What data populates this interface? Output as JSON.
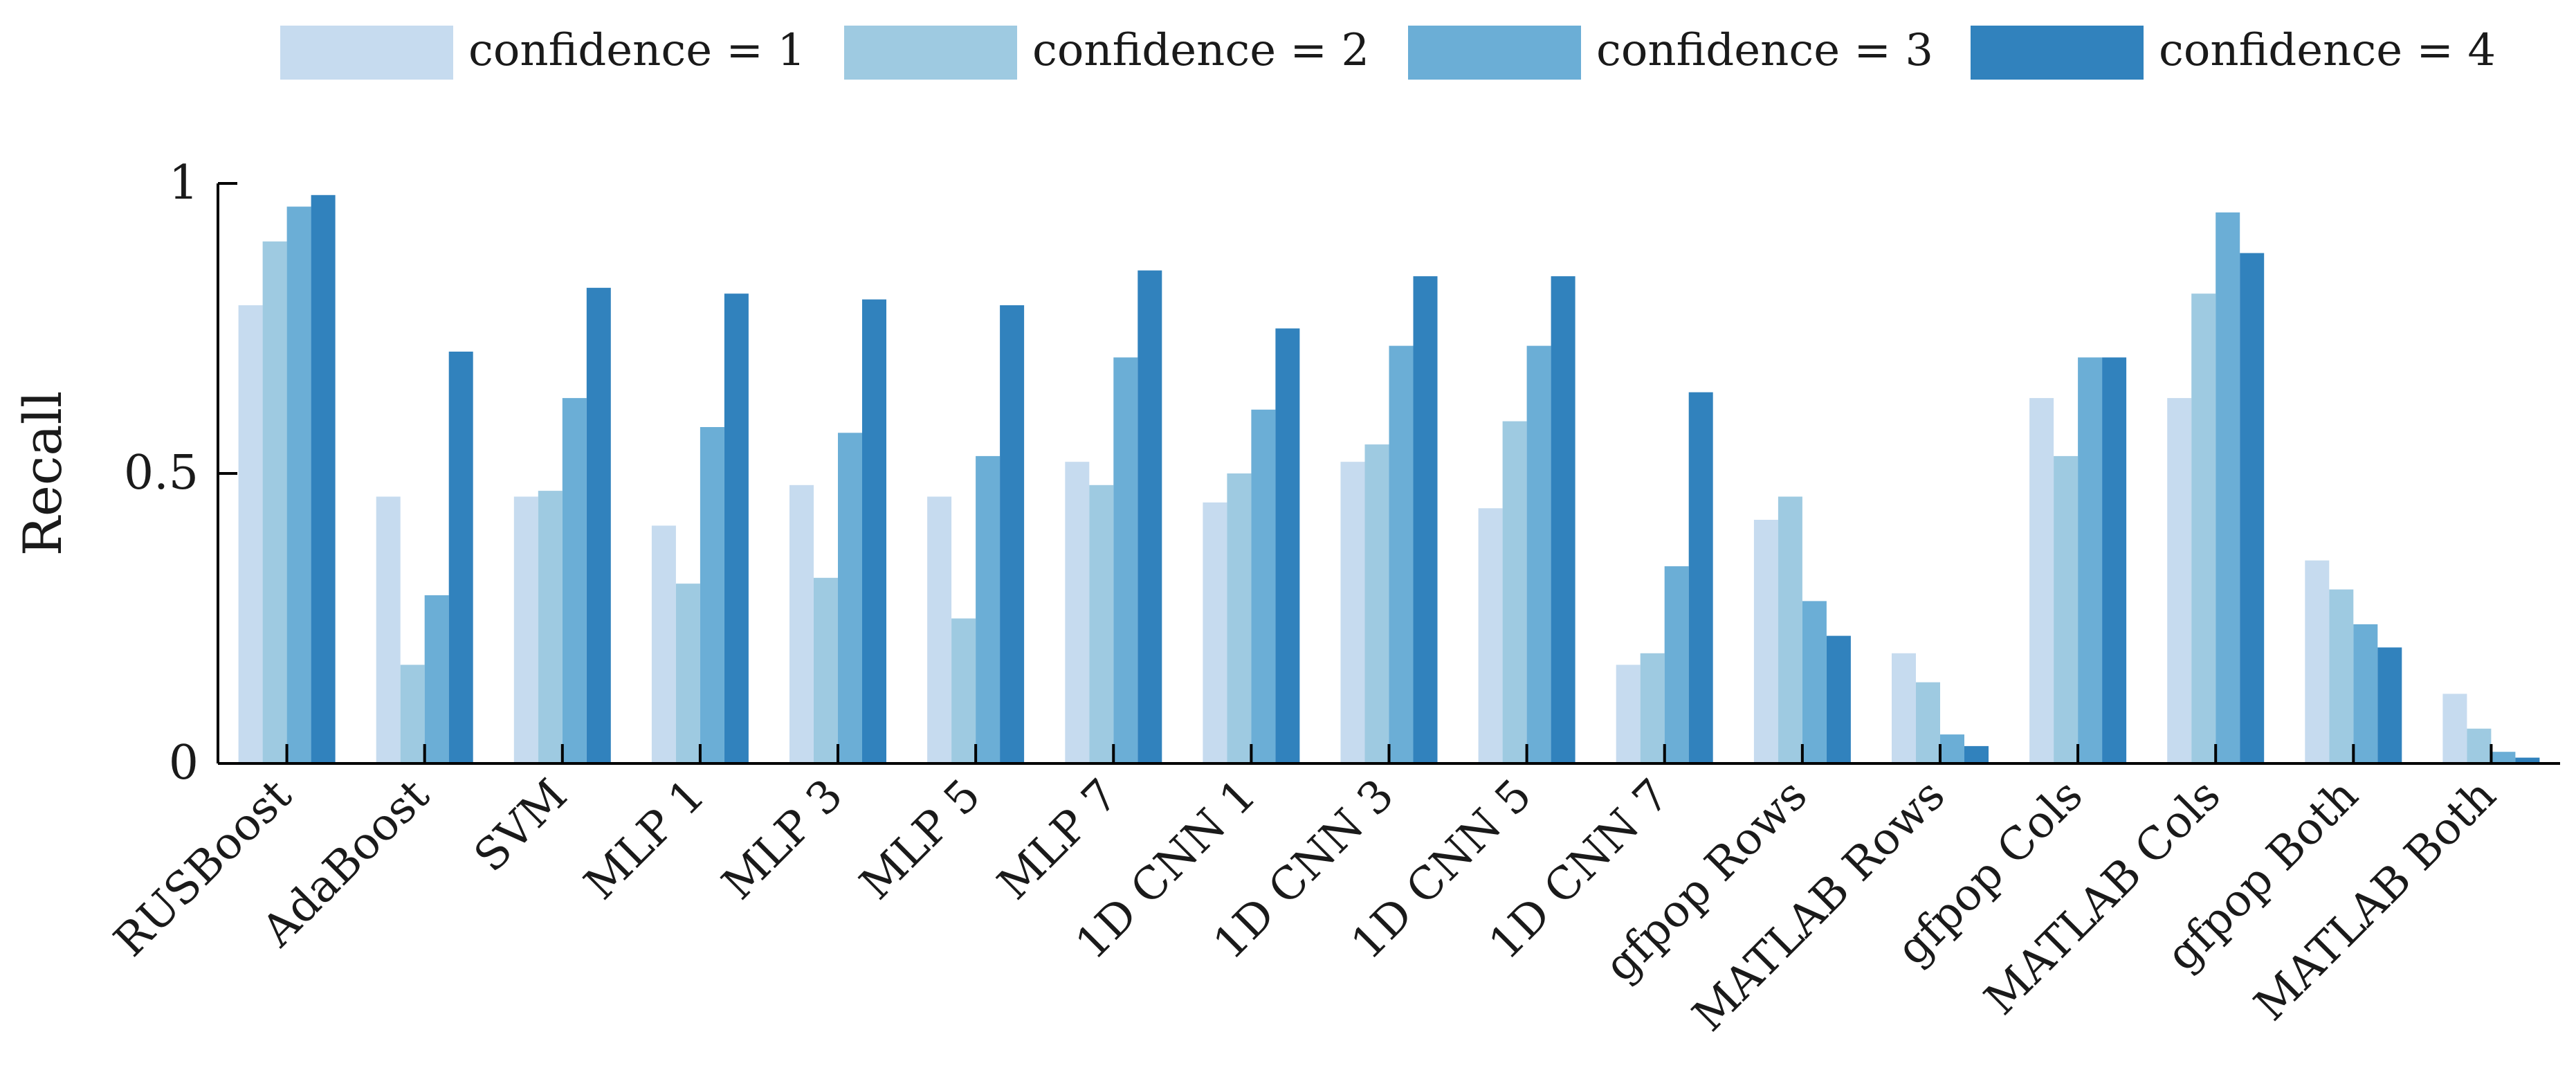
{
  "chart_data": {
    "type": "bar",
    "title": "",
    "xlabel": "",
    "ylabel": "Recall",
    "ylim": [
      0,
      1
    ],
    "yticks": [
      0,
      0.5,
      1
    ],
    "ytick_labels": [
      "0",
      "0.5",
      "1"
    ],
    "grid": false,
    "legend_position": "top",
    "categories": [
      "RUSBoost",
      "AdaBoost",
      "SVM",
      "MLP 1",
      "MLP 3",
      "MLP 5",
      "MLP 7",
      "1D CNN 1",
      "1D CNN 3",
      "1D CNN 5",
      "1D CNN 7",
      "gfpop Rows",
      "MATLAB Rows",
      "gfpop Cols",
      "MATLAB Cols",
      "gfpop Both",
      "MATLAB Both"
    ],
    "series": [
      {
        "name": "confidence = 1",
        "color": "#c6dbef",
        "values": [
          0.79,
          0.46,
          0.46,
          0.41,
          0.48,
          0.46,
          0.52,
          0.45,
          0.52,
          0.44,
          0.17,
          0.42,
          0.19,
          0.63,
          0.63,
          0.35,
          0.12
        ]
      },
      {
        "name": "confidence = 2",
        "color": "#9ecae1",
        "values": [
          0.9,
          0.17,
          0.47,
          0.31,
          0.32,
          0.25,
          0.48,
          0.5,
          0.55,
          0.59,
          0.19,
          0.46,
          0.14,
          0.53,
          0.81,
          0.3,
          0.06
        ]
      },
      {
        "name": "confidence = 3",
        "color": "#6baed6",
        "values": [
          0.96,
          0.29,
          0.63,
          0.58,
          0.57,
          0.53,
          0.7,
          0.61,
          0.72,
          0.72,
          0.34,
          0.28,
          0.05,
          0.7,
          0.95,
          0.24,
          0.02
        ]
      },
      {
        "name": "confidence = 4",
        "color": "#3182bd",
        "values": [
          0.98,
          0.71,
          0.82,
          0.81,
          0.8,
          0.79,
          0.85,
          0.75,
          0.84,
          0.84,
          0.64,
          0.22,
          0.03,
          0.7,
          0.88,
          0.2,
          0.01
        ]
      }
    ]
  }
}
